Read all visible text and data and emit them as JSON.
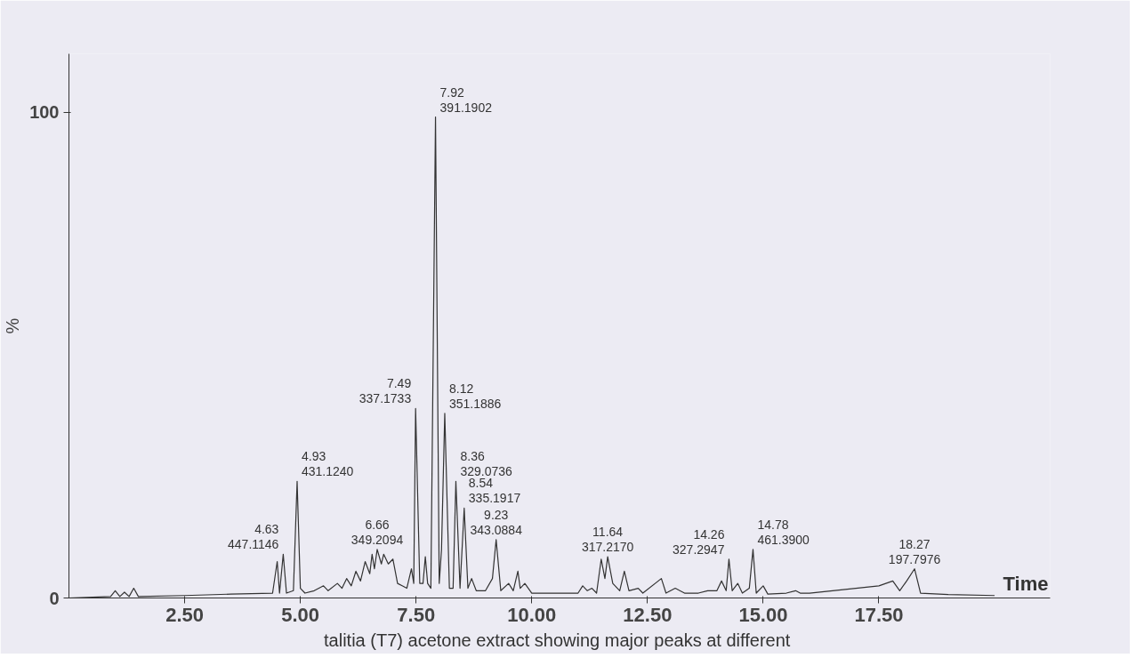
{
  "chart_data": {
    "type": "line",
    "xlabel": "Time",
    "ylabel": "%",
    "xlim": [
      0,
      21.2
    ],
    "ylim": [
      0,
      112
    ],
    "xticks": [
      {
        "value": 2.5,
        "label": "2.50"
      },
      {
        "value": 5,
        "label": "5.00"
      },
      {
        "value": 7.5,
        "label": "7.50"
      },
      {
        "value": 10,
        "label": "10.00"
      },
      {
        "value": 12.5,
        "label": "12.50"
      },
      {
        "value": 15,
        "label": "15.00"
      },
      {
        "value": 17.5,
        "label": "17.50"
      }
    ],
    "yticks": [
      0,
      100
    ],
    "grid": false,
    "marker": "none",
    "line_style": "solid",
    "series": [
      {
        "color": "#333333",
        "x": [
          0,
          0.9,
          1.0,
          1.1,
          1.2,
          1.3,
          1.4,
          1.5,
          2.5,
          3.5,
          4.4,
          4.5,
          4.55,
          4.63,
          4.7,
          4.85,
          4.93,
          5.0,
          5.1,
          5.3,
          5.5,
          5.6,
          5.8,
          5.9,
          6.0,
          6.1,
          6.2,
          6.3,
          6.4,
          6.5,
          6.55,
          6.6,
          6.66,
          6.75,
          6.8,
          6.9,
          7.0,
          7.1,
          7.2,
          7.3,
          7.4,
          7.45,
          7.49,
          7.58,
          7.65,
          7.7,
          7.75,
          7.82,
          7.92,
          8.0,
          8.05,
          8.12,
          8.22,
          8.3,
          8.36,
          8.45,
          8.54,
          8.62,
          8.7,
          8.8,
          9.0,
          9.15,
          9.23,
          9.33,
          9.5,
          9.6,
          9.7,
          9.75,
          9.85,
          10.0,
          10.5,
          11.0,
          11.1,
          11.2,
          11.3,
          11.4,
          11.5,
          11.58,
          11.64,
          11.75,
          11.9,
          12.0,
          12.1,
          12.3,
          12.4,
          12.8,
          12.9,
          13.1,
          13.3,
          13.6,
          13.8,
          14.0,
          14.1,
          14.2,
          14.26,
          14.33,
          14.45,
          14.55,
          14.7,
          14.78,
          14.85,
          15.0,
          15.1,
          15.5,
          15.7,
          15.8,
          16.0,
          16.5,
          17.0,
          17.5,
          17.8,
          17.95,
          18.1,
          18.27,
          18.4,
          19,
          20
        ],
        "values": [
          0,
          0.3,
          1.5,
          0.3,
          1.2,
          0.3,
          2,
          0.3,
          0.5,
          0.8,
          1,
          7.5,
          1,
          9,
          1,
          1.5,
          24,
          2,
          1,
          1.5,
          2.5,
          1.5,
          3,
          2,
          4,
          2.5,
          5.5,
          3.5,
          7.5,
          5,
          9,
          6,
          10,
          7,
          9,
          7,
          8,
          3,
          2.5,
          2,
          6,
          3,
          39,
          3,
          3,
          8.5,
          3,
          2,
          99,
          3,
          10,
          38,
          2,
          2,
          24,
          2,
          18.5,
          2,
          4,
          1.5,
          1.5,
          4,
          12,
          1.5,
          3,
          1.5,
          5.5,
          2,
          3,
          1,
          1,
          1,
          2.5,
          1.5,
          2,
          1,
          8,
          4,
          8.5,
          3,
          1.5,
          5.5,
          1.5,
          2,
          1,
          4,
          1,
          2,
          1,
          1,
          1.5,
          1.5,
          3.5,
          1.5,
          8,
          1.5,
          3,
          1,
          2,
          10,
          1,
          2.5,
          0.8,
          1,
          1.5,
          1,
          1,
          1.5,
          2,
          2.5,
          3.5,
          1.5,
          3.5,
          6,
          1,
          0.7,
          0.5
        ]
      }
    ],
    "annotations": [
      {
        "text": "4.63\n447.1146",
        "x": 4.63,
        "y": 9
      },
      {
        "text": "4.93\n431.1240",
        "x": 4.93,
        "y": 24
      },
      {
        "text": "6.66\n349.2094",
        "x": 6.66,
        "y": 10
      },
      {
        "text": "7.49\n337.1733",
        "x": 7.49,
        "y": 39
      },
      {
        "text": "7.92\n391.1902",
        "x": 7.92,
        "y": 99
      },
      {
        "text": "8.12\n351.1886",
        "x": 8.12,
        "y": 38
      },
      {
        "text": "8.36\n329.0736",
        "x": 8.36,
        "y": 24
      },
      {
        "text": "8.54\n335.1917",
        "x": 8.54,
        "y": 18.5
      },
      {
        "text": "9.23\n343.0884",
        "x": 9.23,
        "y": 12
      },
      {
        "text": "11.64\n317.2170",
        "x": 11.64,
        "y": 8.5
      },
      {
        "text": "14.26\n327.2947",
        "x": 14.26,
        "y": 8
      },
      {
        "text": "14.78\n461.3900",
        "x": 14.78,
        "y": 10
      },
      {
        "text": "18.27\n197.7976",
        "x": 18.27,
        "y": 6
      },
      "talitia (T7) acetone extract showing  major peaks at different"
    ]
  }
}
